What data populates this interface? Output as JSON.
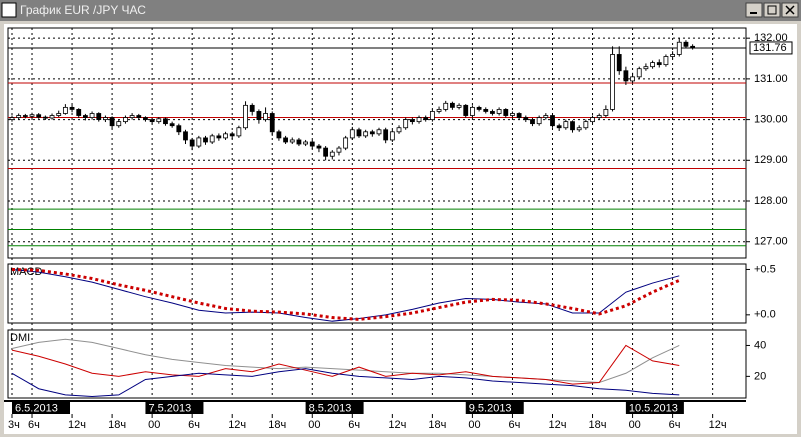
{
  "window": {
    "title": "График EUR /JPY  ЧАС"
  },
  "chart_data": [
    {
      "type": "candlestick",
      "name": "EUR/JPY",
      "xlim": [
        -0.6,
        110
      ],
      "ylim": [
        126.6,
        132.25
      ],
      "yticks": [
        {
          "value": 127,
          "label": "127.00"
        },
        {
          "value": 128,
          "label": "128.00"
        },
        {
          "value": 129,
          "label": "129.00"
        },
        {
          "value": 130,
          "label": "130.00"
        },
        {
          "value": 131,
          "label": "131.00"
        },
        {
          "value": 132,
          "label": "132.00"
        }
      ],
      "grid": true,
      "last_price": 131.76,
      "levels": [
        {
          "value": 130.9,
          "color": "#c00000"
        },
        {
          "value": 130.05,
          "color": "#c00000"
        },
        {
          "value": 128.8,
          "color": "#c00000"
        },
        {
          "value": 127.8,
          "color": "#008000"
        },
        {
          "value": 127.3,
          "color": "#008000"
        },
        {
          "value": 126.9,
          "color": "#008000"
        }
      ],
      "open": [
        130.0,
        130.05,
        130.1,
        130.08,
        130.12,
        130.06,
        130.04,
        130.1,
        130.15,
        130.3,
        130.25,
        130.1,
        130.05,
        130.15,
        130.0,
        130.05,
        129.85,
        129.95,
        130.05,
        130.1,
        130.05,
        130.0,
        129.95,
        130.02,
        129.9,
        129.85,
        129.7,
        129.5,
        129.35,
        129.55,
        129.45,
        129.6,
        129.55,
        129.65,
        129.6,
        129.8,
        130.35,
        130.2,
        130.0,
        130.15,
        129.7,
        129.55,
        129.45,
        129.5,
        129.4,
        129.45,
        129.35,
        129.3,
        129.1,
        129.2,
        129.3,
        129.55,
        129.75,
        129.6,
        129.7,
        129.65,
        129.75,
        129.5,
        129.7,
        129.8,
        130.0,
        129.95,
        130.05,
        130.0,
        130.2,
        130.25,
        130.4,
        130.3,
        130.35,
        130.1,
        130.3,
        130.25,
        130.2,
        130.15,
        130.25,
        130.1,
        130.15,
        130.05,
        130.0,
        129.9,
        130.05,
        130.1,
        129.85,
        129.8,
        129.95,
        129.75,
        129.8,
        129.95,
        130.05,
        130.1,
        130.25,
        131.6,
        131.2,
        130.95,
        131.05,
        131.25,
        131.3,
        131.4,
        131.35,
        131.55,
        131.6,
        131.9,
        131.8
      ],
      "high": [
        130.1,
        130.15,
        130.14,
        130.17,
        130.16,
        130.1,
        130.15,
        130.22,
        130.38,
        130.36,
        130.28,
        130.14,
        130.2,
        130.18,
        130.1,
        130.08,
        130.0,
        130.1,
        130.16,
        130.14,
        130.08,
        130.04,
        130.06,
        130.05,
        129.95,
        129.9,
        129.75,
        129.55,
        129.6,
        129.6,
        129.65,
        129.66,
        129.7,
        129.7,
        129.85,
        130.45,
        130.4,
        130.25,
        130.3,
        130.2,
        129.75,
        129.6,
        129.56,
        129.55,
        129.5,
        129.5,
        129.4,
        129.35,
        129.25,
        129.35,
        129.6,
        129.82,
        129.8,
        129.75,
        129.75,
        129.8,
        129.8,
        129.75,
        129.86,
        130.05,
        130.05,
        130.1,
        130.1,
        130.25,
        130.32,
        130.46,
        130.44,
        130.4,
        130.38,
        130.35,
        130.34,
        130.3,
        130.25,
        130.3,
        130.28,
        130.2,
        130.18,
        130.1,
        130.04,
        130.1,
        130.16,
        130.14,
        129.9,
        130.0,
        129.98,
        129.86,
        130.0,
        130.1,
        130.15,
        130.35,
        131.8,
        131.8,
        131.3,
        131.15,
        131.3,
        131.38,
        131.45,
        131.48,
        131.6,
        131.68,
        132.0,
        131.95,
        131.85
      ],
      "low": [
        129.95,
        130.0,
        130.03,
        130.04,
        130.02,
        129.99,
        130.0,
        130.06,
        130.12,
        130.18,
        130.04,
        129.98,
        130.0,
        129.95,
        129.94,
        129.78,
        129.8,
        129.9,
        130.0,
        130.0,
        129.95,
        129.9,
        129.9,
        129.85,
        129.8,
        129.62,
        129.4,
        129.25,
        129.3,
        129.38,
        129.4,
        129.48,
        129.5,
        129.52,
        129.55,
        129.75,
        130.1,
        129.9,
        129.95,
        129.6,
        129.48,
        129.4,
        129.4,
        129.35,
        129.35,
        129.28,
        129.2,
        129.0,
        129.02,
        129.12,
        129.25,
        129.5,
        129.55,
        129.55,
        129.58,
        129.6,
        129.42,
        129.45,
        129.65,
        129.75,
        129.88,
        129.9,
        129.95,
        129.95,
        130.15,
        130.2,
        130.24,
        130.25,
        130.05,
        130.05,
        130.2,
        130.15,
        130.1,
        130.1,
        130.05,
        130.05,
        130.0,
        129.94,
        129.84,
        129.85,
        130.0,
        129.8,
        129.72,
        129.75,
        129.68,
        129.7,
        129.75,
        129.9,
        130.0,
        130.05,
        130.2,
        131.1,
        130.85,
        130.9,
        131.0,
        131.2,
        131.25,
        131.28,
        131.3,
        131.5,
        131.55,
        131.75,
        131.72
      ],
      "close": [
        130.05,
        130.1,
        130.08,
        130.12,
        130.06,
        130.04,
        130.1,
        130.15,
        130.3,
        130.25,
        130.1,
        130.05,
        130.15,
        130.0,
        130.05,
        129.85,
        129.95,
        130.05,
        130.1,
        130.05,
        130.0,
        129.95,
        130.02,
        129.9,
        129.85,
        129.7,
        129.5,
        129.35,
        129.55,
        129.45,
        129.6,
        129.55,
        129.65,
        129.6,
        129.8,
        130.35,
        130.2,
        130.0,
        130.15,
        129.7,
        129.55,
        129.45,
        129.5,
        129.4,
        129.45,
        129.35,
        129.3,
        129.1,
        129.2,
        129.3,
        129.55,
        129.75,
        129.6,
        129.7,
        129.65,
        129.75,
        129.5,
        129.7,
        129.8,
        130.0,
        129.95,
        130.05,
        130.0,
        130.2,
        130.25,
        130.4,
        130.3,
        130.35,
        130.1,
        130.3,
        130.25,
        130.2,
        130.15,
        130.25,
        130.1,
        130.15,
        130.05,
        130.0,
        129.9,
        130.05,
        130.1,
        129.85,
        129.8,
        129.95,
        129.75,
        129.8,
        129.95,
        130.05,
        130.1,
        130.25,
        131.6,
        131.2,
        130.95,
        131.05,
        131.25,
        131.3,
        131.4,
        131.35,
        131.55,
        131.6,
        131.9,
        131.8,
        131.76
      ],
      "xticks": [
        {
          "value": 0,
          "label": "3ч"
        },
        {
          "value": 3,
          "label": "6ч"
        },
        {
          "value": 9,
          "label": "12ч"
        },
        {
          "value": 15,
          "label": "18ч"
        },
        {
          "value": 21,
          "label": "00"
        },
        {
          "value": 27,
          "label": "6ч"
        },
        {
          "value": 33,
          "label": "12ч"
        },
        {
          "value": 39,
          "label": "18ч"
        },
        {
          "value": 45,
          "label": "00"
        },
        {
          "value": 51,
          "label": "6ч"
        },
        {
          "value": 57,
          "label": "12ч"
        },
        {
          "value": 63,
          "label": "18ч"
        },
        {
          "value": 69,
          "label": "00"
        },
        {
          "value": 75,
          "label": "6ч"
        },
        {
          "value": 81,
          "label": "12ч"
        },
        {
          "value": 87,
          "label": "18ч"
        },
        {
          "value": 93,
          "label": "00"
        },
        {
          "value": 99,
          "label": "6ч"
        },
        {
          "value": 105,
          "label": "12ч"
        }
      ],
      "dates": [
        {
          "value": 0,
          "label": "6.5.2013"
        },
        {
          "value": 20,
          "label": "7.5.2013"
        },
        {
          "value": 44,
          "label": "8.5.2013"
        },
        {
          "value": 68,
          "label": "9.5.2013"
        },
        {
          "value": 92,
          "label": "10.5.2013"
        }
      ]
    },
    {
      "type": "line",
      "title": "MACD",
      "xlim": [
        -0.6,
        110
      ],
      "ylim": [
        -0.09,
        0.56
      ],
      "yticks": [
        {
          "value": 0.5,
          "label": "+0.5"
        },
        {
          "value": 0,
          "label": "+0.0"
        }
      ],
      "x": [
        0,
        4,
        8,
        12,
        16,
        20,
        24,
        28,
        32,
        36,
        40,
        44,
        48,
        52,
        56,
        60,
        64,
        68,
        72,
        76,
        80,
        84,
        88,
        92,
        96,
        100
      ],
      "series": [
        {
          "color": "#000080",
          "dash": false,
          "values": [
            0.5,
            0.47,
            0.42,
            0.36,
            0.28,
            0.2,
            0.13,
            0.05,
            0.02,
            0.03,
            0.02,
            -0.03,
            -0.07,
            -0.04,
            0.0,
            0.06,
            0.13,
            0.18,
            0.17,
            0.14,
            0.12,
            0.02,
            0.02,
            0.25,
            0.35,
            0.43
          ]
        },
        {
          "color": "#cc0000",
          "dash": true,
          "values": [
            0.5,
            0.49,
            0.45,
            0.4,
            0.33,
            0.27,
            0.2,
            0.13,
            0.07,
            0.04,
            0.03,
            0.01,
            -0.03,
            -0.05,
            -0.02,
            0.02,
            0.08,
            0.14,
            0.17,
            0.16,
            0.12,
            0.07,
            0.01,
            0.1,
            0.25,
            0.38
          ]
        }
      ]
    },
    {
      "type": "line",
      "title": "DMI",
      "xlim": [
        -0.6,
        110
      ],
      "ylim": [
        6,
        50
      ],
      "yticks": [
        40,
        20
      ],
      "x": [
        0,
        4,
        8,
        12,
        16,
        20,
        24,
        28,
        32,
        36,
        40,
        44,
        48,
        52,
        56,
        60,
        64,
        68,
        72,
        76,
        80,
        84,
        88,
        92,
        96,
        100
      ],
      "series": [
        {
          "color": "#909090",
          "dash": false,
          "values": [
            38,
            42,
            44,
            42,
            38,
            34,
            31,
            29,
            27,
            26,
            25,
            26,
            25,
            24,
            23,
            22,
            22,
            21,
            20,
            19,
            18,
            17,
            16,
            22,
            32,
            40
          ]
        },
        {
          "color": "#cc0000",
          "dash": false,
          "values": [
            37,
            33,
            28,
            22,
            20,
            23,
            21,
            20,
            25,
            23,
            28,
            24,
            20,
            26,
            20,
            22,
            21,
            23,
            20,
            19,
            18,
            15,
            16,
            40,
            30,
            27
          ]
        },
        {
          "color": "#000080",
          "dash": false,
          "values": [
            22,
            12,
            8,
            7,
            8,
            18,
            20,
            22,
            21,
            20,
            23,
            25,
            22,
            20,
            19,
            18,
            20,
            19,
            17,
            16,
            15,
            14,
            12,
            11,
            9,
            8
          ]
        }
      ]
    }
  ]
}
